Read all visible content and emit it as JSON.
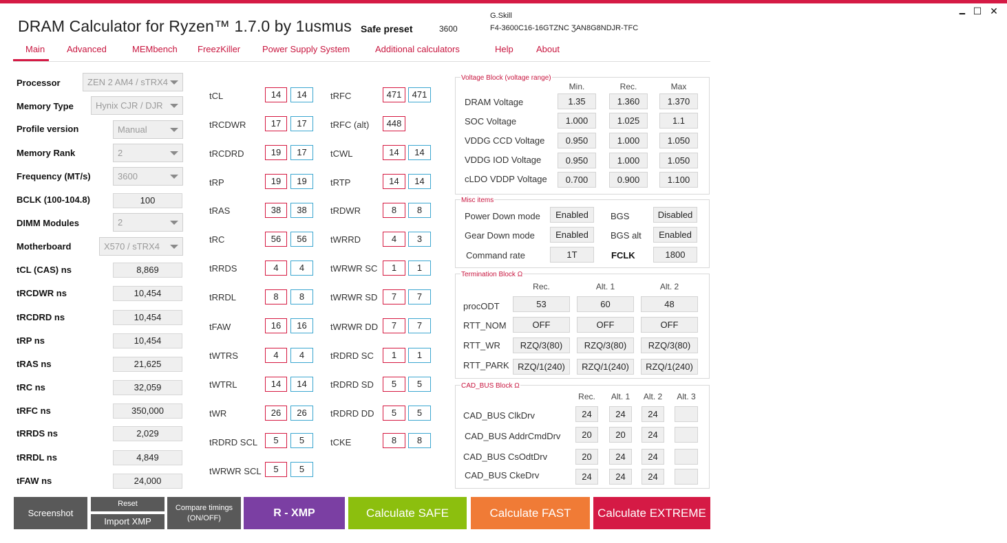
{
  "window": {
    "title": "DRAM Calculator for Ryzen™ 1.7.0 by 1usmus",
    "minimize_glyph": "🗕",
    "maximize_glyph": "☐",
    "close_glyph": "✕",
    "accent_color": "#d51a45"
  },
  "header": {
    "preset_label": "Safe preset",
    "preset_freq": "3600",
    "vendor": "G.Skill",
    "part_number": "F4-3600C16-16GTZNC ƷAN8G8NDJR-TFC"
  },
  "nav": {
    "tabs": [
      "Main",
      "Advanced",
      "MEMbench",
      "FreezKiller",
      "Power Supply System",
      "Additional calculators",
      "Help",
      "About"
    ],
    "active": "Main"
  },
  "settings": {
    "processor": {
      "label": "Processor",
      "value": "ZEN 2 AM4 / sTRX4"
    },
    "memory_type": {
      "label": "Memory Type",
      "value": "Hynix CJR / DJR"
    },
    "profile_version": {
      "label": "Profile version",
      "value": "Manual"
    },
    "memory_rank": {
      "label": "Memory Rank",
      "value": "2"
    },
    "frequency": {
      "label": "Frequency (MT/s)",
      "value": "3600"
    },
    "bclk": {
      "label": "BCLK (100-104.8)",
      "value": "100"
    },
    "dimm_modules": {
      "label": "DIMM Modules",
      "value": "2"
    },
    "motherboard": {
      "label": "Motherboard",
      "value": "X570 / sTRX4"
    }
  },
  "ns_values": [
    {
      "label": "tCL (CAS) ns",
      "value": "8,869"
    },
    {
      "label": "tRCDWR ns",
      "value": "10,454"
    },
    {
      "label": "tRCDRD ns",
      "value": "10,454"
    },
    {
      "label": "tRP ns",
      "value": "10,454"
    },
    {
      "label": "tRAS ns",
      "value": "21,625"
    },
    {
      "label": "tRC ns",
      "value": "32,059"
    },
    {
      "label": "tRFC ns",
      "value": "350,000"
    },
    {
      "label": "tRRDS ns",
      "value": "2,029"
    },
    {
      "label": "tRRDL ns",
      "value": "4,849"
    },
    {
      "label": "tFAW ns",
      "value": "24,000"
    }
  ],
  "timings_left": [
    {
      "label": "tCL",
      "calc": "14",
      "xmp": "14"
    },
    {
      "label": "tRCDWR",
      "calc": "17",
      "xmp": "17"
    },
    {
      "label": "tRCDRD",
      "calc": "19",
      "xmp": "17"
    },
    {
      "label": "tRP",
      "calc": "19",
      "xmp": "19"
    },
    {
      "label": "tRAS",
      "calc": "38",
      "xmp": "38"
    },
    {
      "label": "tRC",
      "calc": "56",
      "xmp": "56"
    },
    {
      "label": "tRRDS",
      "calc": "4",
      "xmp": "4"
    },
    {
      "label": "tRRDL",
      "calc": "8",
      "xmp": "8"
    },
    {
      "label": "tFAW",
      "calc": "16",
      "xmp": "16"
    },
    {
      "label": "tWTRS",
      "calc": "4",
      "xmp": "4"
    },
    {
      "label": "tWTRL",
      "calc": "14",
      "xmp": "14"
    },
    {
      "label": "tWR",
      "calc": "26",
      "xmp": "26"
    },
    {
      "label": "tRDRD SCL",
      "calc": "5",
      "xmp": "5"
    },
    {
      "label": "tWRWR SCL",
      "calc": "5",
      "xmp": "5"
    }
  ],
  "timings_right": [
    {
      "label": "tRFC",
      "calc": "471",
      "xmp": "471"
    },
    {
      "label": "tRFC (alt)",
      "calc": "448",
      "xmp": ""
    },
    {
      "label": "tCWL",
      "calc": "14",
      "xmp": "14"
    },
    {
      "label": "tRTP",
      "calc": "14",
      "xmp": "14"
    },
    {
      "label": "tRDWR",
      "calc": "8",
      "xmp": "8"
    },
    {
      "label": "tWRRD",
      "calc": "4",
      "xmp": "3"
    },
    {
      "label": "tWRWR SC",
      "calc": "1",
      "xmp": "1"
    },
    {
      "label": "tWRWR SD",
      "calc": "7",
      "xmp": "7"
    },
    {
      "label": "tWRWR DD",
      "calc": "7",
      "xmp": "7"
    },
    {
      "label": "tRDRD SC",
      "calc": "1",
      "xmp": "1"
    },
    {
      "label": "tRDRD SD",
      "calc": "5",
      "xmp": "5"
    },
    {
      "label": "tRDRD DD",
      "calc": "5",
      "xmp": "5"
    },
    {
      "label": "tCKE",
      "calc": "8",
      "xmp": "8"
    }
  ],
  "voltage": {
    "title": "Voltage Block (voltage range)",
    "headers": [
      "Min.",
      "Rec.",
      "Max"
    ],
    "rows": [
      {
        "label": "DRAM Voltage",
        "min": "1.35",
        "rec": "1.360",
        "max": "1.370"
      },
      {
        "label": "SOC Voltage",
        "min": "1.000",
        "rec": "1.025",
        "max": "1.1"
      },
      {
        "label": "VDDG  CCD Voltage",
        "min": "0.950",
        "rec": "1.000",
        "max": "1.050"
      },
      {
        "label": "VDDG  IOD Voltage",
        "min": "0.950",
        "rec": "1.000",
        "max": "1.050"
      },
      {
        "label": "cLDO VDDP Voltage",
        "min": "0.700",
        "rec": "0.900",
        "max": "1.100"
      }
    ]
  },
  "misc": {
    "title": "Misc items",
    "power_down_label": "Power Down mode",
    "power_down": "Enabled",
    "bgs_label": "BGS",
    "bgs": "Disabled",
    "gear_down_label": "Gear Down mode",
    "gear_down": "Enabled",
    "bgs_alt_label": "BGS alt",
    "bgs_alt": "Enabled",
    "command_rate_label": "Command rate",
    "command_rate": "1T",
    "fclk_label": "FCLK",
    "fclk": "1800"
  },
  "termination": {
    "title": "Termination Block Ω",
    "headers": [
      "Rec.",
      "Alt. 1",
      "Alt. 2"
    ],
    "rows": [
      {
        "label": "procODT",
        "values": [
          "53",
          "60",
          "48"
        ]
      },
      {
        "label": "RTT_NOM",
        "values": [
          "OFF",
          "OFF",
          "OFF"
        ]
      },
      {
        "label": "RTT_WR",
        "values": [
          "RZQ/3(80)",
          "RZQ/3(80)",
          "RZQ/3(80)"
        ]
      },
      {
        "label": "RTT_PARK",
        "values": [
          "RZQ/1(240)",
          "RZQ/1(240)",
          "RZQ/1(240)"
        ]
      }
    ]
  },
  "cadbus": {
    "title": "CAD_BUS Block Ω",
    "headers": [
      "Rec.",
      "Alt. 1",
      "Alt. 2",
      "Alt. 3"
    ],
    "rows": [
      {
        "label": "CAD_BUS ClkDrv",
        "values": [
          "24",
          "24",
          "24",
          ""
        ]
      },
      {
        "label": "CAD_BUS AddrCmdDrv",
        "values": [
          "20",
          "20",
          "24",
          ""
        ]
      },
      {
        "label": "CAD_BUS CsOdtDrv",
        "values": [
          "20",
          "24",
          "24",
          ""
        ]
      },
      {
        "label": "CAD_BUS CkeDrv",
        "values": [
          "24",
          "24",
          "24",
          ""
        ]
      }
    ]
  },
  "buttons": {
    "screenshot": "Screenshot",
    "reset": "Reset",
    "import_xmp": "Import XMP",
    "compare_line1": "Compare timings",
    "compare_line2": "(ON/OFF)",
    "r_xmp": "R - XMP",
    "calc_safe": "Calculate SAFE",
    "calc_fast": "Calculate FAST",
    "calc_extreme": "Calculate EXTREME",
    "colors": {
      "gray": "#595959",
      "purple": "#7b3fa3",
      "green": "#8cbf0e",
      "orange": "#f07b36",
      "red": "#d51a45"
    }
  }
}
